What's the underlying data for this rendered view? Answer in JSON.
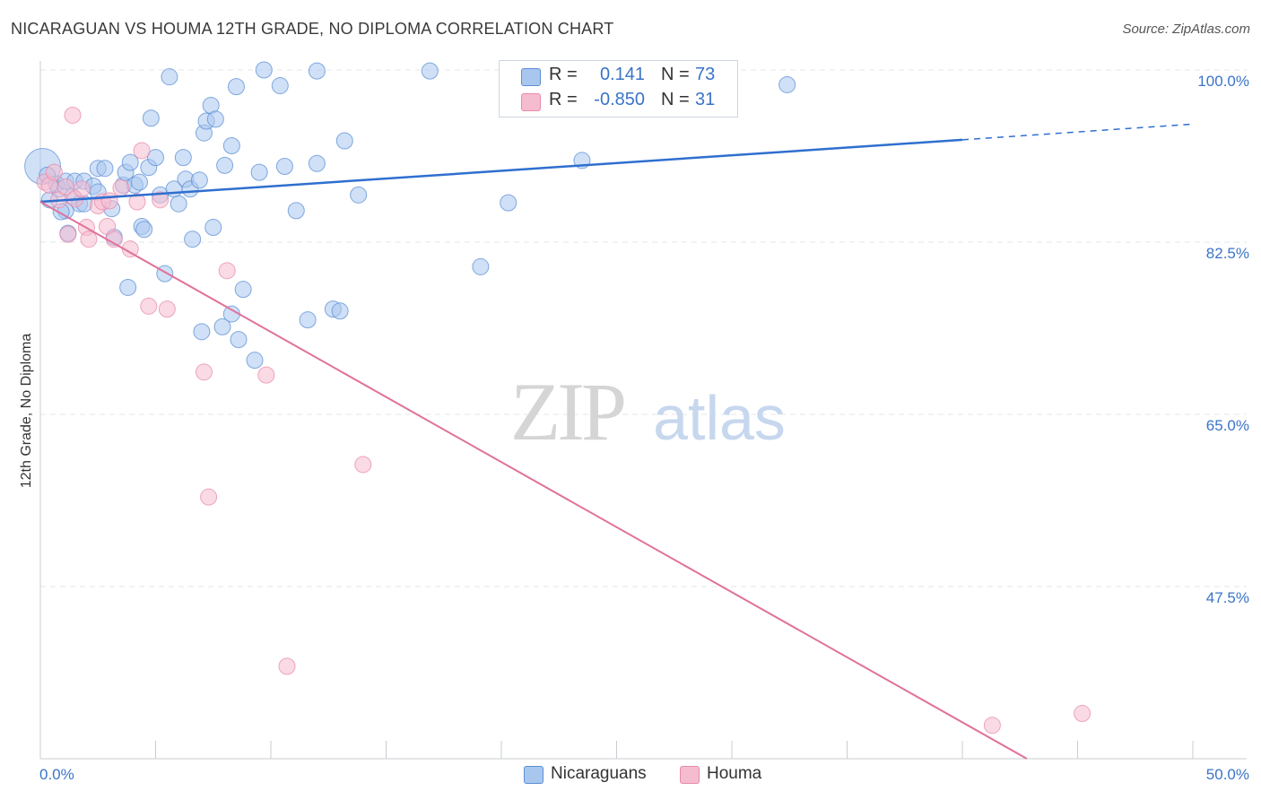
{
  "header": {
    "title": "NICARAGUAN VS HOUMA 12TH GRADE, NO DIPLOMA CORRELATION CHART",
    "source": "Source: ZipAtlas.com"
  },
  "watermark": {
    "zip": "ZIP",
    "atlas": "atlas"
  },
  "legend": {
    "rows": [
      {
        "r_label": "R =",
        "r_value": "0.141",
        "n_label": "N =",
        "n_value": "73"
      },
      {
        "r_label": "R =",
        "r_value": "-0.850",
        "n_label": "N =",
        "n_value": "31"
      }
    ]
  },
  "bottom_legend": {
    "series1": "Nicaraguans",
    "series2": "Houma"
  },
  "colors": {
    "blue_fill": "#a9c7ee",
    "blue_stroke": "#5b8fd6",
    "blue_line": "#2f6fcf",
    "pink_fill": "#f5bcd0",
    "pink_stroke": "#e88aa9",
    "pink_line": "#e0729a",
    "axis_text": "#3a74c8",
    "grid": "#e3e6ea"
  },
  "chart_data": {
    "type": "scatter",
    "title": "NICARAGUAN VS HOUMA 12TH GRADE, NO DIPLOMA CORRELATION CHART",
    "xlabel": "",
    "ylabel": "12th Grade, No Diploma",
    "xlim": [
      0,
      50
    ],
    "ylim": [
      30,
      100
    ],
    "x_ticks": [
      "0.0%",
      "50.0%"
    ],
    "y_ticks": [
      {
        "value": 100,
        "label": "100.0%"
      },
      {
        "value": 82.5,
        "label": "82.5%"
      },
      {
        "value": 65,
        "label": "65.0%"
      },
      {
        "value": 47.5,
        "label": "47.5%"
      }
    ],
    "grid": true,
    "legend_position": "top-center",
    "series": [
      {
        "name": "Nicaraguans",
        "color": "#5b8fd6",
        "r": 0.141,
        "n": 73,
        "trend": {
          "x": [
            0,
            40,
            50
          ],
          "y": [
            86.6,
            92.9,
            94.5
          ],
          "solid_until_x": 40
        },
        "points": [
          [
            0.1,
            90.2
          ],
          [
            0.3,
            89.3
          ],
          [
            0.4,
            86.8
          ],
          [
            0.7,
            88.4
          ],
          [
            0.8,
            87.9
          ],
          [
            1.1,
            88.7
          ],
          [
            1.1,
            85.7
          ],
          [
            1.2,
            83.4
          ],
          [
            1.4,
            87.1
          ],
          [
            1.5,
            88.7
          ],
          [
            1.7,
            86.4
          ],
          [
            1.9,
            88.7
          ],
          [
            1.9,
            86.4
          ],
          [
            2.3,
            88.2
          ],
          [
            2.5,
            87.6
          ],
          [
            2.5,
            90.0
          ],
          [
            2.8,
            90.0
          ],
          [
            3.1,
            85.9
          ],
          [
            3.2,
            83.0
          ],
          [
            3.6,
            88.3
          ],
          [
            3.7,
            89.6
          ],
          [
            3.8,
            77.9
          ],
          [
            3.9,
            90.6
          ],
          [
            4.1,
            88.3
          ],
          [
            4.3,
            88.6
          ],
          [
            4.4,
            84.1
          ],
          [
            4.5,
            83.8
          ],
          [
            4.7,
            90.1
          ],
          [
            4.8,
            95.1
          ],
          [
            5.0,
            91.1
          ],
          [
            5.2,
            87.3
          ],
          [
            5.4,
            79.3
          ],
          [
            5.6,
            99.3
          ],
          [
            5.8,
            87.9
          ],
          [
            6.0,
            86.4
          ],
          [
            6.2,
            91.1
          ],
          [
            6.3,
            88.9
          ],
          [
            6.5,
            87.9
          ],
          [
            6.6,
            82.8
          ],
          [
            6.9,
            88.8
          ],
          [
            7.0,
            73.4
          ],
          [
            7.1,
            93.6
          ],
          [
            7.2,
            94.8
          ],
          [
            7.4,
            96.4
          ],
          [
            7.5,
            84.0
          ],
          [
            7.6,
            95.0
          ],
          [
            7.9,
            73.9
          ],
          [
            8.0,
            90.3
          ],
          [
            8.3,
            75.2
          ],
          [
            8.3,
            92.3
          ],
          [
            8.5,
            98.3
          ],
          [
            8.6,
            72.6
          ],
          [
            8.8,
            77.7
          ],
          [
            9.3,
            70.5
          ],
          [
            9.5,
            89.6
          ],
          [
            9.7,
            100.0
          ],
          [
            10.4,
            98.4
          ],
          [
            10.6,
            90.2
          ],
          [
            11.1,
            85.7
          ],
          [
            11.6,
            74.6
          ],
          [
            12.0,
            90.5
          ],
          [
            12.0,
            99.9
          ],
          [
            12.7,
            75.7
          ],
          [
            13.0,
            75.5
          ],
          [
            13.2,
            92.8
          ],
          [
            13.8,
            87.3
          ],
          [
            16.9,
            99.9
          ],
          [
            19.1,
            80.0
          ],
          [
            20.3,
            86.5
          ],
          [
            21.8,
            100.0
          ],
          [
            23.5,
            90.8
          ],
          [
            32.4,
            98.5
          ],
          [
            0.9,
            85.6
          ]
        ]
      },
      {
        "name": "Houma",
        "color": "#e88aa9",
        "r": -0.85,
        "n": 31,
        "trend": {
          "x": [
            0,
            42.8
          ],
          "y": [
            86.6,
            30.0
          ]
        },
        "points": [
          [
            0.2,
            88.6
          ],
          [
            0.4,
            88.3
          ],
          [
            0.6,
            89.6
          ],
          [
            0.8,
            86.8
          ],
          [
            1.1,
            88.1
          ],
          [
            1.2,
            83.3
          ],
          [
            1.5,
            86.9
          ],
          [
            1.8,
            87.9
          ],
          [
            2.0,
            84.0
          ],
          [
            2.1,
            82.8
          ],
          [
            2.5,
            86.2
          ],
          [
            2.7,
            86.6
          ],
          [
            2.9,
            84.1
          ],
          [
            3.0,
            86.7
          ],
          [
            3.2,
            82.8
          ],
          [
            3.5,
            88.0
          ],
          [
            3.9,
            81.8
          ],
          [
            4.2,
            86.6
          ],
          [
            4.4,
            91.8
          ],
          [
            4.7,
            76.0
          ],
          [
            5.2,
            86.8
          ],
          [
            5.5,
            75.7
          ],
          [
            7.1,
            69.3
          ],
          [
            7.3,
            56.6
          ],
          [
            8.1,
            79.6
          ],
          [
            9.8,
            69.0
          ],
          [
            10.7,
            39.4
          ],
          [
            14.0,
            59.9
          ],
          [
            1.4,
            95.4
          ],
          [
            41.3,
            33.4
          ],
          [
            45.2,
            34.6
          ]
        ]
      }
    ]
  }
}
